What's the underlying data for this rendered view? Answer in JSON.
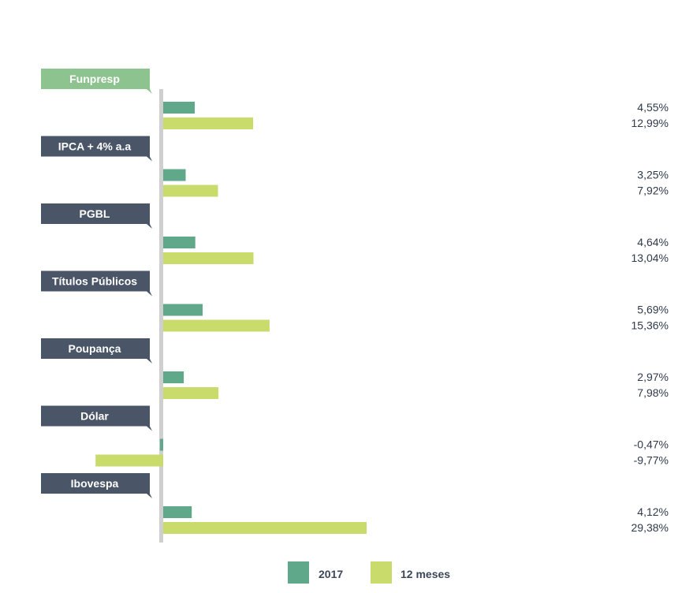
{
  "chart_data": {
    "type": "bar",
    "orientation": "horizontal",
    "categories": [
      "Funpresp",
      "IPCA + 4% a.a",
      "PGBL",
      "Títulos Públicos",
      "Poupança",
      "Dólar",
      "Ibovespa"
    ],
    "series": [
      {
        "name": "2017",
        "values": [
          4.55,
          3.25,
          4.64,
          5.69,
          2.97,
          -0.47,
          4.12
        ],
        "labels": [
          "4,55%",
          "3,25%",
          "4,64%",
          "5,69%",
          "2,97%",
          "-0,47%",
          "4,12%"
        ]
      },
      {
        "name": "12 meses",
        "values": [
          12.99,
          7.92,
          13.04,
          15.36,
          7.98,
          -9.77,
          29.38
        ],
        "labels": [
          "12,99%",
          "7,92%",
          "13,04%",
          "15,36%",
          "7,98%",
          "-9,77%",
          "29,38%"
        ]
      }
    ],
    "highlight_category": "Funpresp",
    "legend_position": "bottom",
    "grid": false,
    "colors": {
      "series_2017": "#5fa88a",
      "series_12m": "#c9db6b",
      "label_box": "#4a5568",
      "label_box_highlight": "#8cc38f",
      "axis": "#cfcfcf",
      "value_text": "#2f3a4c"
    }
  }
}
